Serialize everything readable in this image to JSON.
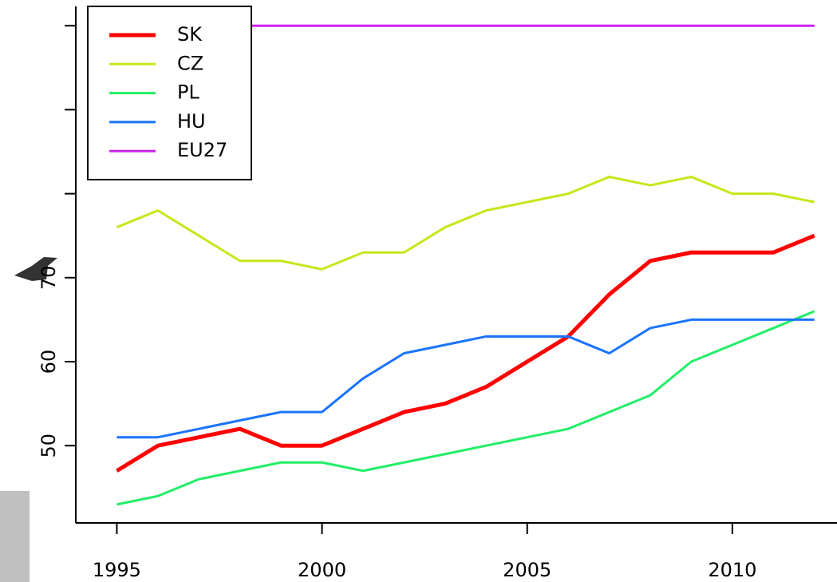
{
  "chart_data": {
    "type": "line",
    "x": [
      1995,
      1996,
      1997,
      1998,
      1999,
      2000,
      2001,
      2002,
      2003,
      2004,
      2005,
      2006,
      2007,
      2008,
      2009,
      2010,
      2011,
      2012
    ],
    "series": [
      {
        "name": "SK",
        "color": "#ff0000",
        "values": [
          47,
          50,
          51,
          52,
          50,
          50,
          52,
          54,
          55,
          57,
          60,
          63,
          68,
          72,
          73,
          73,
          73,
          75
        ]
      },
      {
        "name": "CZ",
        "color": "#c8e619",
        "values": [
          76,
          78,
          75,
          72,
          72,
          71,
          73,
          73,
          76,
          78,
          79,
          80,
          82,
          81,
          82,
          80,
          80,
          79
        ]
      },
      {
        "name": "PL",
        "color": "#22ee66",
        "values": [
          43,
          44,
          46,
          47,
          48,
          48,
          47,
          48,
          49,
          50,
          51,
          52,
          54,
          56,
          60,
          62,
          64,
          66
        ]
      },
      {
        "name": "HU",
        "color": "#1a73ff",
        "values": [
          51,
          51,
          52,
          53,
          54,
          54,
          58,
          61,
          62,
          63,
          63,
          63,
          61,
          64,
          65,
          65,
          65,
          65
        ]
      },
      {
        "name": "EU27",
        "color": "#cc22ee",
        "values": [
          100,
          100,
          100,
          100,
          100,
          100,
          100,
          100,
          100,
          100,
          100,
          100,
          100,
          100,
          100,
          100,
          100,
          100
        ]
      }
    ],
    "xlim": [
      1994,
      2012.55
    ],
    "xticks": [
      1995,
      2000,
      2005,
      2010
    ],
    "ylim": [
      40.8,
      102.3
    ],
    "yticks": [
      50,
      60,
      70,
      {
        "value": 80,
        "label": null
      },
      {
        "value": 90,
        "label": null
      },
      {
        "value": 100,
        "label": null
      }
    ],
    "legend": "top-left"
  }
}
